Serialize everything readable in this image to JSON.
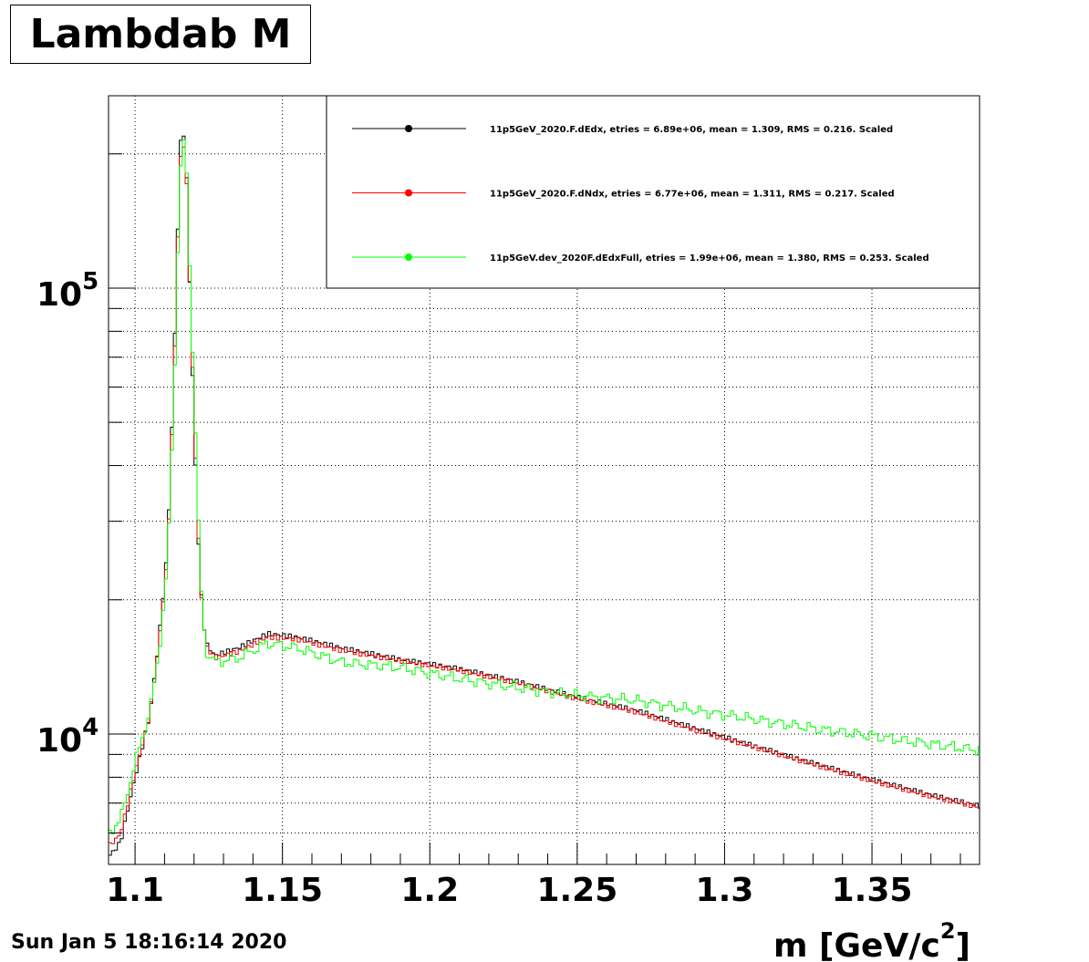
{
  "title": "Lambdab M",
  "timestamp": "Sun Jan  5 18:16:14 2020",
  "chart_data": {
    "type": "line",
    "xlabel": "m [GeV/c",
    "xlabel_sup": "2",
    "xlabel_end": "]",
    "xlim": [
      1.091,
      1.3865
    ],
    "ylim": [
      5100,
      270000
    ],
    "yscale": "log",
    "grid": true,
    "legend_position": "top-right",
    "x_tick_labels": [
      "1.1",
      "1.15",
      "1.2",
      "1.25",
      "1.3",
      "1.35"
    ],
    "x_ticks": [
      1.1,
      1.15,
      1.2,
      1.25,
      1.3,
      1.35
    ],
    "y_major_ticks": [
      {
        "value": 10000,
        "base": "10",
        "exp": "4"
      },
      {
        "value": 100000,
        "base": "10",
        "exp": "5"
      }
    ],
    "series": [
      {
        "name": "11p5GeV_2020.F.dEdx, etries =   6.89e+06, mean =   1.309, RMS =   0.216. Scaled",
        "color": "#000000",
        "points": [
          [
            1.091,
            5300
          ],
          [
            1.095,
            5700
          ],
          [
            1.1,
            8000
          ],
          [
            1.105,
            11000
          ],
          [
            1.108,
            16000
          ],
          [
            1.111,
            26000
          ],
          [
            1.113,
            60000
          ],
          [
            1.115,
            180000
          ],
          [
            1.116,
            250000
          ],
          [
            1.1175,
            175000
          ],
          [
            1.119,
            80000
          ],
          [
            1.1205,
            40000
          ],
          [
            1.122,
            22000
          ],
          [
            1.124,
            16000
          ],
          [
            1.127,
            15000
          ],
          [
            1.135,
            15600
          ],
          [
            1.145,
            16800
          ],
          [
            1.155,
            16500
          ],
          [
            1.17,
            15600
          ],
          [
            1.19,
            14700
          ],
          [
            1.21,
            14000
          ],
          [
            1.23,
            13100
          ],
          [
            1.25,
            12100
          ],
          [
            1.27,
            11300
          ],
          [
            1.29,
            10300
          ],
          [
            1.31,
            9400
          ],
          [
            1.33,
            8600
          ],
          [
            1.35,
            7900
          ],
          [
            1.37,
            7300
          ],
          [
            1.3865,
            6900
          ]
        ]
      },
      {
        "name": "11p5GeV_2020.F.dNdx, etries =   6.77e+06, mean =   1.311, RMS =   0.217. Scaled",
        "color": "#ff0000",
        "points": [
          [
            1.091,
            5600
          ],
          [
            1.095,
            5950
          ],
          [
            1.1,
            8200
          ],
          [
            1.105,
            11000
          ],
          [
            1.108,
            15800
          ],
          [
            1.111,
            25000
          ],
          [
            1.113,
            57000
          ],
          [
            1.115,
            170000
          ],
          [
            1.116,
            230000
          ],
          [
            1.1175,
            170000
          ],
          [
            1.119,
            82000
          ],
          [
            1.1205,
            42000
          ],
          [
            1.122,
            22000
          ],
          [
            1.124,
            15800
          ],
          [
            1.127,
            14800
          ],
          [
            1.135,
            15300
          ],
          [
            1.145,
            16500
          ],
          [
            1.155,
            16300
          ],
          [
            1.17,
            15400
          ],
          [
            1.19,
            14600
          ],
          [
            1.21,
            13900
          ],
          [
            1.23,
            13000
          ],
          [
            1.25,
            12000
          ],
          [
            1.27,
            11200
          ],
          [
            1.29,
            10200
          ],
          [
            1.31,
            9350
          ],
          [
            1.33,
            8550
          ],
          [
            1.35,
            7850
          ],
          [
            1.37,
            7250
          ],
          [
            1.3865,
            6850
          ]
        ]
      },
      {
        "name": "11p5GeV.dev_2020F.dEdxFull, etries =   1.99e+06, mean =   1.380, RMS =   0.253. Scaled",
        "color": "#00ff00",
        "points": [
          [
            1.091,
            6000
          ],
          [
            1.095,
            6400
          ],
          [
            1.1,
            8600
          ],
          [
            1.105,
            11200
          ],
          [
            1.108,
            15000
          ],
          [
            1.111,
            24000
          ],
          [
            1.113,
            52000
          ],
          [
            1.115,
            160000
          ],
          [
            1.116,
            225000
          ],
          [
            1.1175,
            180000
          ],
          [
            1.119,
            90000
          ],
          [
            1.1205,
            48000
          ],
          [
            1.122,
            23000
          ],
          [
            1.124,
            15400
          ],
          [
            1.127,
            14500
          ],
          [
            1.135,
            14800
          ],
          [
            1.145,
            16000
          ],
          [
            1.155,
            15600
          ],
          [
            1.17,
            14500
          ],
          [
            1.19,
            14100
          ],
          [
            1.21,
            13300
          ],
          [
            1.23,
            12700
          ],
          [
            1.25,
            12200
          ],
          [
            1.27,
            11900
          ],
          [
            1.29,
            11300
          ],
          [
            1.31,
            10800
          ],
          [
            1.33,
            10300
          ],
          [
            1.35,
            9900
          ],
          [
            1.37,
            9500
          ],
          [
            1.3865,
            9200
          ]
        ]
      }
    ]
  }
}
